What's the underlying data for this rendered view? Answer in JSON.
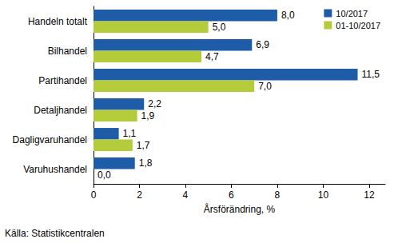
{
  "chart_data": {
    "type": "bar",
    "orientation": "horizontal",
    "categories": [
      "Handeln totalt",
      "Bilhandel",
      "Partihandel",
      "Detaljhandel",
      "Dagligvaruhandel",
      "Varuhushandel"
    ],
    "series": [
      {
        "name": "10/2017",
        "color": "#1f5ca8",
        "values": [
          8.0,
          6.9,
          11.5,
          2.2,
          1.1,
          1.8
        ],
        "value_labels": [
          "8,0",
          "6,9",
          "11,5",
          "2,2",
          "1,1",
          "1,8"
        ]
      },
      {
        "name": "01-10/2017",
        "color": "#b5cc3a",
        "values": [
          5.0,
          4.7,
          7.0,
          1.9,
          1.7,
          0.0
        ],
        "value_labels": [
          "5,0",
          "4,7",
          "7,0",
          "1,9",
          "1,7",
          "0,0"
        ]
      }
    ],
    "xlim": [
      0,
      12.7
    ],
    "xticks": [
      0,
      2,
      4,
      6,
      8,
      10,
      12
    ],
    "xlabel": "Årsförändring, %",
    "annotations": [
      "Källa: Statistikcentralen"
    ],
    "data_labels": true,
    "legend": "upper right",
    "grid": false
  }
}
